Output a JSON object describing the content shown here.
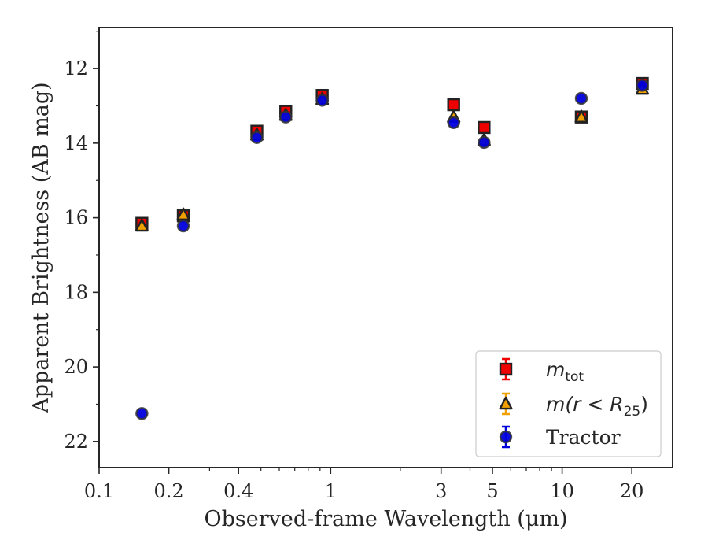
{
  "chart_data": {
    "type": "scatter",
    "xlabel": "Observed-frame Wavelength (μm)",
    "ylabel": "Apparent Brightness (AB mag)",
    "xscale": "log",
    "xlim": [
      0.1,
      30
    ],
    "ylim": [
      22.7,
      10.9
    ],
    "y_inverted": true,
    "x_tick_labels": [
      "0.1",
      "0.2",
      "0.4",
      "1",
      "3",
      "5",
      "10",
      "20"
    ],
    "x_tick_values": [
      0.1,
      0.2,
      0.4,
      1,
      3,
      5,
      10,
      20
    ],
    "y_tick_labels": [
      "12",
      "14",
      "16",
      "18",
      "20",
      "22"
    ],
    "y_tick_values": [
      12,
      14,
      16,
      18,
      20,
      22
    ],
    "legend_position": "lower-right",
    "series": [
      {
        "name": "m_tot",
        "legend_main": "m",
        "legend_sub": "tot",
        "marker": "square",
        "color": "#ee0000",
        "edge": "#222222",
        "x": [
          0.153,
          0.231,
          0.48,
          0.64,
          0.92,
          3.4,
          4.6,
          12.1,
          22.2
        ],
        "y": [
          16.15,
          15.95,
          13.68,
          13.15,
          12.72,
          12.97,
          13.58,
          13.3,
          12.4
        ]
      },
      {
        "name": "m(r < R_25)",
        "legend_main": "m(r < R",
        "legend_sub": "25",
        "legend_tail": ")",
        "marker": "triangle",
        "color": "#f0a000",
        "edge": "#222222",
        "x": [
          0.153,
          0.231,
          0.48,
          0.64,
          0.92,
          3.4,
          4.6,
          12.1,
          22.2
        ],
        "y": [
          16.22,
          15.92,
          13.78,
          13.25,
          12.82,
          13.3,
          13.92,
          13.3,
          12.55
        ]
      },
      {
        "name": "Tractor",
        "legend_main": "Tractor",
        "marker": "circle",
        "color": "#0000dd",
        "edge": "#333333",
        "x": [
          0.153,
          0.231,
          0.48,
          0.64,
          0.92,
          3.4,
          4.6,
          12.1,
          22.2
        ],
        "y": [
          21.25,
          16.22,
          13.85,
          13.3,
          12.85,
          13.45,
          13.98,
          12.8,
          12.45
        ]
      }
    ]
  }
}
